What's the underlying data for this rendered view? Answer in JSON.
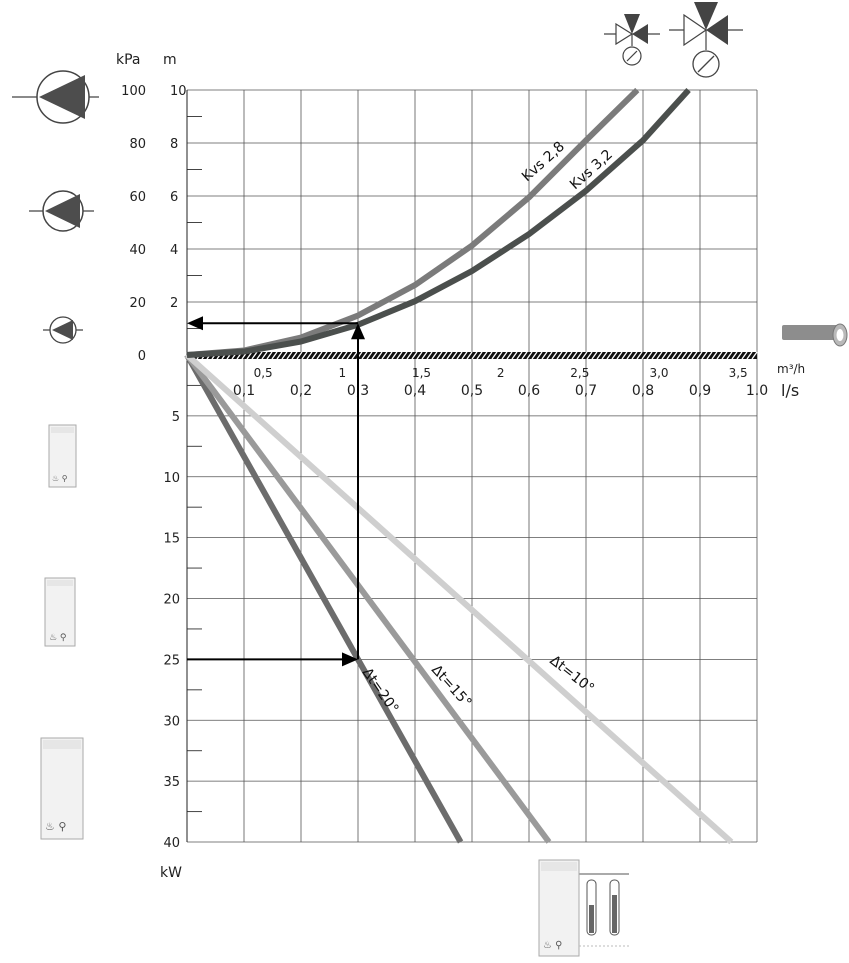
{
  "chart_data": {
    "type": "line",
    "axes": {
      "pressure_kpa": {
        "label": "kPa",
        "ticks": [
          "100",
          "80",
          "60",
          "40",
          "20",
          "0"
        ],
        "range": [
          0,
          100
        ]
      },
      "pressure_m": {
        "label": "m",
        "ticks": [
          "10",
          "8",
          "6",
          "4",
          "2"
        ],
        "range": [
          0,
          10
        ]
      },
      "flow_m3h": {
        "label": "m³/h",
        "ticks": [
          "0,5",
          "1",
          "1,5",
          "2",
          "2,5",
          "3,0",
          "3,5"
        ],
        "range": [
          0,
          3.6
        ]
      },
      "flow_ls": {
        "label": "l/s",
        "ticks": [
          "0,1",
          "0,2",
          "0,3",
          "0,4",
          "0,5",
          "0,6",
          "0,7",
          "0,8",
          "0,9",
          "1.0"
        ],
        "range": [
          0,
          1.0
        ]
      },
      "power_kw": {
        "label": "kW",
        "ticks": [
          "5",
          "10",
          "15",
          "20",
          "25",
          "30",
          "35",
          "40"
        ],
        "range": [
          0,
          40
        ]
      }
    },
    "pressure_series": [
      {
        "name": "Kvs 2,8",
        "x_ls": [
          0,
          0.1,
          0.2,
          0.3,
          0.4,
          0.5,
          0.6,
          0.7,
          0.79
        ],
        "y_kpa": [
          0,
          1.7,
          6.6,
          14.9,
          26.4,
          41.3,
          59.5,
          81.0,
          100
        ],
        "color": "#7b7b7b"
      },
      {
        "name": "Kvs 3,2",
        "x_ls": [
          0,
          0.1,
          0.2,
          0.3,
          0.4,
          0.5,
          0.6,
          0.7,
          0.8,
          0.88
        ],
        "y_kpa": [
          0,
          1.3,
          5.1,
          11.4,
          20.3,
          31.7,
          45.6,
          62.0,
          81.0,
          100
        ],
        "color": "#4b4f4d"
      }
    ],
    "power_series": [
      {
        "name": "Δt=20°",
        "x_ls": [
          0,
          0.48
        ],
        "y_kw": [
          0,
          40
        ],
        "color": "#6c6c6c"
      },
      {
        "name": "Δt=15°",
        "x_ls": [
          0,
          0.635
        ],
        "y_kw": [
          0,
          40
        ],
        "color": "#9a9a9a"
      },
      {
        "name": "Δt=10°",
        "x_ls": [
          0,
          0.955
        ],
        "y_kw": [
          0,
          40
        ],
        "color": "#cfcfcf"
      }
    ],
    "example": {
      "flow_ls": 0.3,
      "pressure_kpa": 12,
      "power_kw": 25
    },
    "grid": true
  }
}
